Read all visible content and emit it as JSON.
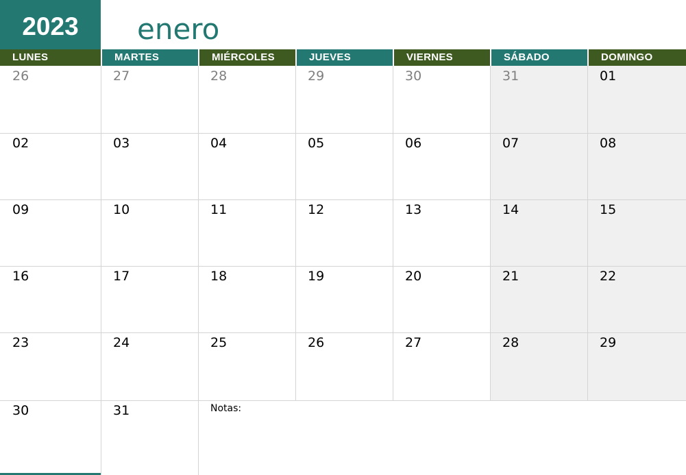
{
  "year": "2023",
  "month": "enero",
  "colors": {
    "teal": "#237872",
    "olive": "#3f5a21",
    "weekend": "#f0f0f0"
  },
  "weekdays": [
    "LUNES",
    "MARTES",
    "MIÉRCOLES",
    "JUEVES",
    "VIERNES",
    "SÁBADO",
    "DOMINGO"
  ],
  "weeks": [
    [
      "26",
      "27",
      "28",
      "29",
      "30",
      "31",
      "01"
    ],
    [
      "02",
      "03",
      "04",
      "05",
      "06",
      "07",
      "08"
    ],
    [
      "09",
      "10",
      "11",
      "12",
      "13",
      "14",
      "15"
    ],
    [
      "16",
      "17",
      "18",
      "19",
      "20",
      "21",
      "22"
    ],
    [
      "23",
      "24",
      "25",
      "26",
      "27",
      "28",
      "29"
    ],
    [
      "30",
      "31"
    ]
  ],
  "out_of_month": [
    [
      0,
      0
    ],
    [
      0,
      1
    ],
    [
      0,
      2
    ],
    [
      0,
      3
    ],
    [
      0,
      4
    ],
    [
      0,
      5
    ]
  ],
  "notes_label": "Notas:"
}
